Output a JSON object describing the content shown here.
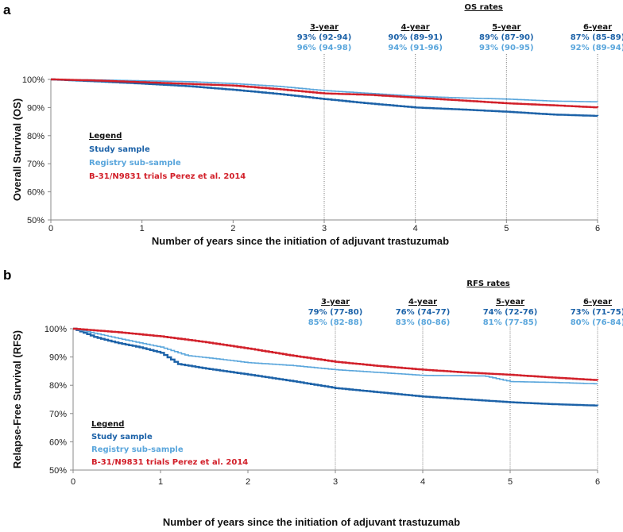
{
  "colors": {
    "study": "#1c62a8",
    "registry": "#5aa6dc",
    "trial": "#d2202a",
    "axis": "#888888"
  },
  "chart_data": [
    {
      "type": "line",
      "panel_label": "a",
      "title": "OS rates",
      "xlabel": "Number of years since the initiation  of adjuvant trastuzumab",
      "ylabel": "Overall Survival (OS)",
      "xlim": [
        0,
        6
      ],
      "ylim": [
        50,
        100
      ],
      "xticks": [
        "0",
        "1",
        "2",
        "3",
        "4",
        "5",
        "6"
      ],
      "yticks": [
        "50%",
        "60%",
        "70%",
        "80%",
        "90%",
        "100%"
      ],
      "legend": {
        "title": "Legend",
        "position": "lower-left",
        "entries": [
          "Study sample",
          "Registry sub-sample",
          "B-31/N9831 trials  Perez et al. 2014"
        ]
      },
      "series": [
        {
          "name": "Study sample",
          "key": "study",
          "x": [
            0,
            0.5,
            1,
            1.5,
            2,
            2.5,
            3,
            3.5,
            4,
            4.5,
            5,
            5.5,
            6
          ],
          "y": [
            100,
            99.3,
            98.5,
            97.6,
            96.3,
            94.8,
            93,
            91.4,
            90,
            89.3,
            88.5,
            87.5,
            87
          ]
        },
        {
          "name": "Registry sub-sample",
          "key": "registry",
          "x": [
            0,
            0.5,
            1,
            1.5,
            2,
            2.5,
            3,
            3.5,
            4,
            4.5,
            5,
            5.5,
            6
          ],
          "y": [
            100,
            99.8,
            99.5,
            99.2,
            98.5,
            97.5,
            96,
            95,
            94,
            93.4,
            93,
            92.3,
            92
          ]
        },
        {
          "name": "B-31/N9831 trials  Perez et al. 2014",
          "key": "trial",
          "x": [
            0,
            0.5,
            1,
            1.5,
            2,
            2.5,
            3,
            3.5,
            4,
            4.5,
            5,
            5.5,
            6
          ],
          "y": [
            100,
            99.6,
            99,
            98.4,
            97.8,
            96.5,
            95,
            94.5,
            93.5,
            92.5,
            91.5,
            90.8,
            90
          ]
        }
      ],
      "annotations": [
        {
          "x": 3,
          "heading": "3-year",
          "study": "93% (92-94)",
          "registry": "96% (94-98)"
        },
        {
          "x": 4,
          "heading": "4-year",
          "study": "90% (89-91)",
          "registry": "94% (91-96)"
        },
        {
          "x": 5,
          "heading": "5-year",
          "study": "89% (87-90)",
          "registry": "93% (90-95)"
        },
        {
          "x": 6,
          "heading": "6-year",
          "study": "87% (85-89)",
          "registry": "92% (89-94)"
        }
      ]
    },
    {
      "type": "line",
      "panel_label": "b",
      "title": "RFS rates",
      "xlabel": "Number of years since the initiation  of adjuvant trastuzumab",
      "ylabel": "Relapse-Free Survival (RFS)",
      "xlim": [
        0,
        6
      ],
      "ylim": [
        50,
        100
      ],
      "xticks": [
        "0",
        "1",
        "2",
        "3",
        "4",
        "5",
        "6"
      ],
      "yticks": [
        "50%",
        "60%",
        "70%",
        "80%",
        "90%",
        "100%"
      ],
      "legend": {
        "title": "Legend",
        "position": "lower-left",
        "entries": [
          "Study sample",
          "Registry sub-sample",
          "B-31/N9831 trials  Perez et al. 2014"
        ]
      },
      "series": [
        {
          "name": "Study sample",
          "key": "study",
          "x": [
            0,
            0.25,
            0.5,
            0.75,
            1,
            1.2,
            1.5,
            2,
            2.5,
            3,
            3.5,
            4,
            4.5,
            5,
            5.5,
            6
          ],
          "y": [
            100,
            97,
            95,
            93.5,
            91.5,
            87.5,
            86,
            83.8,
            81.5,
            79,
            77.5,
            76,
            75,
            74,
            73.3,
            72.8
          ]
        },
        {
          "name": "Registry sub-sample",
          "key": "registry",
          "x": [
            0,
            0.3,
            0.6,
            1,
            1.3,
            1.6,
            2,
            2.5,
            3,
            3.5,
            4,
            4.7,
            5,
            5.5,
            6
          ],
          "y": [
            100,
            98,
            96,
            93.5,
            90.5,
            89.5,
            88,
            87,
            85.5,
            84.5,
            83.5,
            83.3,
            81.3,
            81,
            80.5
          ]
        },
        {
          "name": "B-31/N9831 trials  Perez et al. 2014",
          "key": "trial",
          "x": [
            0,
            0.5,
            1,
            1.5,
            2,
            2.5,
            3,
            3.5,
            4,
            4.5,
            5,
            5.5,
            6
          ],
          "y": [
            100,
            98.8,
            97.3,
            95.3,
            93,
            90.5,
            88.3,
            86.8,
            85.5,
            84.5,
            83.7,
            82.7,
            81.8
          ]
        }
      ],
      "annotations": [
        {
          "x": 3,
          "heading": "3-year",
          "study": "79% (77-80)",
          "registry": "85% (82-88)"
        },
        {
          "x": 4,
          "heading": "4-year",
          "study": "76% (74-77)",
          "registry": "83% (80-86)"
        },
        {
          "x": 5,
          "heading": "5-year",
          "study": "74% (72-76)",
          "registry": "81% (77-85)"
        },
        {
          "x": 6,
          "heading": "6-year",
          "study": "73% (71-75)",
          "registry": "80% (76-84)"
        }
      ]
    }
  ]
}
